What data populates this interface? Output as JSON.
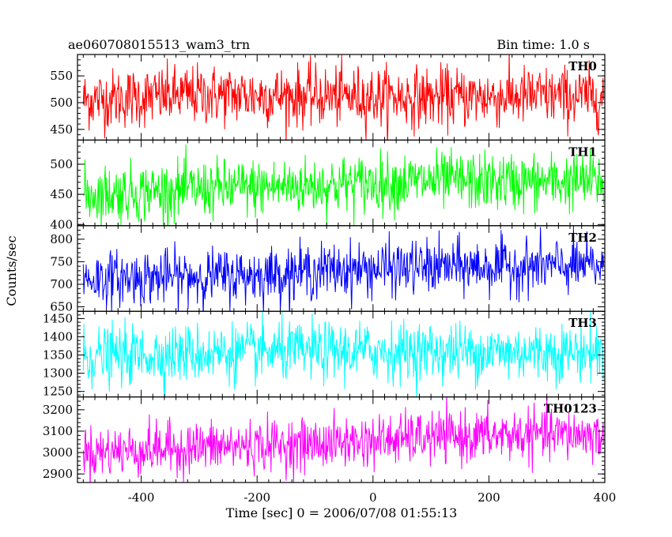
{
  "header": {
    "title": "ae060708015513_wam3_trn",
    "bin_time": "Bin time: 1.0 s"
  },
  "chart_data": {
    "type": "line",
    "x_range": [
      -510,
      400
    ],
    "y_label": "Counts/sec",
    "x_label": "Time [sec] 0 = 2006/07/08 01:55:13",
    "x_ticks": [
      -400,
      -200,
      0,
      200,
      400
    ],
    "panels": [
      {
        "name": "TH0",
        "color": "#ff0000",
        "ylim": [
          430,
          590
        ],
        "y_ticks": [
          450,
          500,
          550
        ],
        "mean_trend": [
          [
            -500,
            505
          ],
          [
            -300,
            515
          ],
          [
            -100,
            512
          ],
          [
            100,
            510
          ],
          [
            300,
            512
          ],
          [
            400,
            510
          ]
        ],
        "noise_sigma": 28
      },
      {
        "name": "TH1",
        "color": "#00ff00",
        "ylim": [
          398,
          540
        ],
        "y_ticks": [
          400,
          450,
          500
        ],
        "mean_trend": [
          [
            -500,
            450
          ],
          [
            -300,
            458
          ],
          [
            -100,
            465
          ],
          [
            100,
            472
          ],
          [
            300,
            470
          ],
          [
            400,
            472
          ]
        ],
        "noise_sigma": 24
      },
      {
        "name": "TH2",
        "color": "#0000ff",
        "ylim": [
          640,
          830
        ],
        "y_ticks": [
          650,
          700,
          750,
          800
        ],
        "mean_trend": [
          [
            -500,
            712
          ],
          [
            -300,
            718
          ],
          [
            -200,
            720
          ],
          [
            -100,
            730
          ],
          [
            100,
            738
          ],
          [
            300,
            740
          ],
          [
            400,
            740
          ]
        ],
        "noise_sigma": 30
      },
      {
        "name": "TH3",
        "color": "#00ffff",
        "ylim": [
          1235,
          1470
        ],
        "y_ticks": [
          1250,
          1300,
          1350,
          1400,
          1450
        ],
        "mean_trend": [
          [
            -500,
            1345
          ],
          [
            -300,
            1355
          ],
          [
            -100,
            1360
          ],
          [
            100,
            1360
          ],
          [
            300,
            1358
          ],
          [
            400,
            1358
          ]
        ],
        "noise_sigma": 40
      },
      {
        "name": "TH0123",
        "color": "#ff00ff",
        "ylim": [
          2860,
          3260
        ],
        "y_ticks": [
          2900,
          3000,
          3100,
          3200
        ],
        "mean_trend": [
          [
            -500,
            3000
          ],
          [
            -300,
            3025
          ],
          [
            -100,
            3040
          ],
          [
            100,
            3070
          ],
          [
            300,
            3085
          ],
          [
            400,
            3080
          ]
        ],
        "noise_sigma": 60
      }
    ]
  }
}
